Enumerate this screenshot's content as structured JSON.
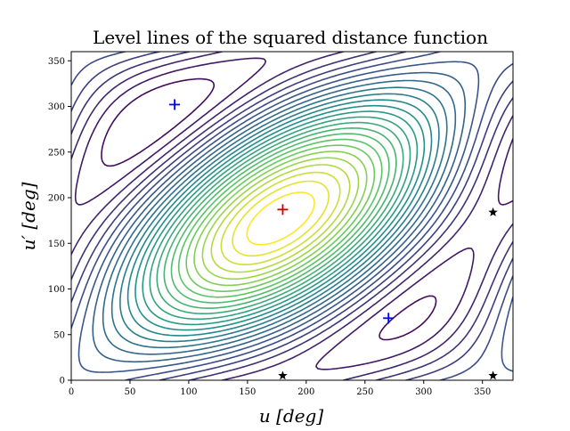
{
  "chart_data": {
    "type": "contour",
    "title": "Level lines of the squared distance function",
    "xlabel": "u [deg]",
    "ylabel": "u′ [deg]",
    "xlim": [
      0,
      376
    ],
    "ylim": [
      0,
      360
    ],
    "x_ticks": [
      0,
      50,
      100,
      150,
      200,
      250,
      300,
      350
    ],
    "y_ticks": [
      0,
      50,
      100,
      150,
      200,
      250,
      300,
      350
    ],
    "grid": false,
    "colormap": "viridis",
    "colormap_colors": [
      "#440154",
      "#3b528b",
      "#21918c",
      "#5ec962",
      "#fde725"
    ],
    "contour_levels": 26,
    "contour_center": [
      180,
      187
    ],
    "markers": [
      {
        "symbol": "plus",
        "color": "#0000ff",
        "x": 88,
        "y": 302
      },
      {
        "symbol": "plus",
        "color": "#0000ff",
        "x": 270,
        "y": 68
      },
      {
        "symbol": "plus",
        "color": "#cc0000",
        "x": 180,
        "y": 187
      },
      {
        "symbol": "star",
        "color": "#000000",
        "x": 359,
        "y": 184
      },
      {
        "symbol": "star",
        "color": "#000000",
        "x": 180,
        "y": 5
      },
      {
        "symbol": "star",
        "color": "#000000",
        "x": 359,
        "y": 5
      }
    ]
  }
}
